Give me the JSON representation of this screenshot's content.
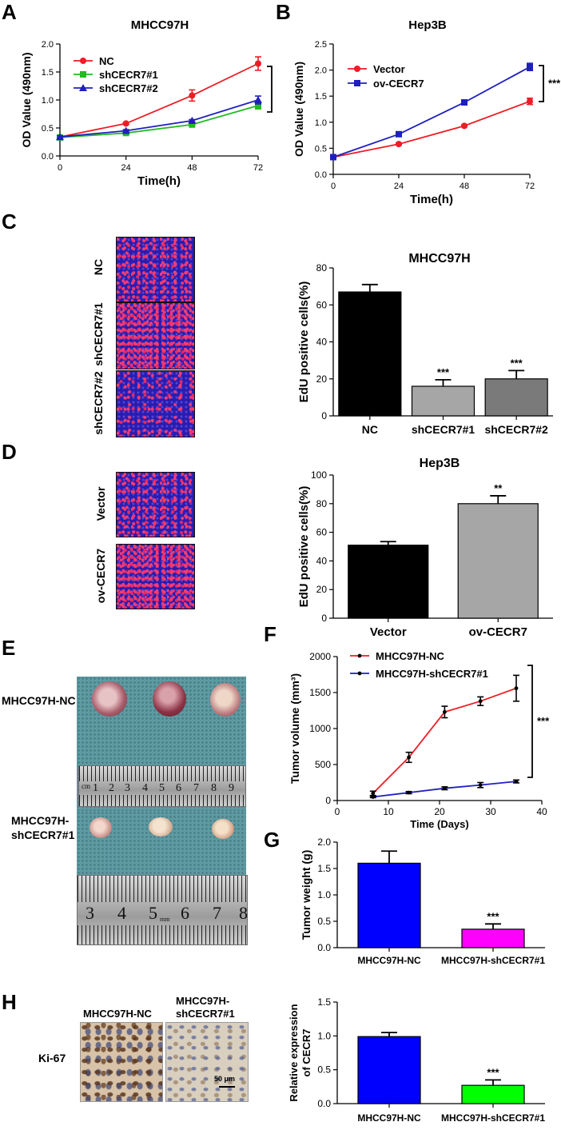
{
  "panels": {
    "A": "A",
    "B": "B",
    "C": "C",
    "D": "D",
    "E": "E",
    "F": "F",
    "G": "G",
    "H": "H"
  },
  "panel_C": {
    "labels": [
      "NC",
      "shCECR7#1",
      "shCECR7#2"
    ]
  },
  "panel_D": {
    "labels": [
      "Vector",
      "ov-CECR7"
    ]
  },
  "panel_E": {
    "row1": "MHCC97H-NC",
    "row2_line1": "MHCC97H-",
    "row2_line2": "shCECR7#1",
    "ruler1_numbers": [
      "cm",
      "1",
      "2",
      "3",
      "4",
      "5",
      "6",
      "7",
      "8",
      "9"
    ],
    "ruler2_numbers": [
      "3",
      "4",
      "5",
      "6",
      "7",
      "8"
    ],
    "ruler2_unit": "mm"
  },
  "panel_H": {
    "col1": "MHCC97H-NC",
    "col2_line1": "MHCC97H-",
    "col2_line2": "shCECR7#1",
    "row": "Ki-67",
    "scale_bar": "50 μm"
  },
  "colors": {
    "red": "#ee1c25",
    "green": "#22bb22",
    "blue": "#1f1fbf",
    "black": "#000000",
    "gray_light": "#a6a6a6",
    "gray_dark": "#7a7a7a",
    "bar_blue": "#0000ff",
    "magenta": "#ff00ff",
    "lime": "#00ff00"
  },
  "chart_data": [
    {
      "id": "A",
      "type": "line",
      "title": "MHCC97H",
      "xlabel": "Time(h)",
      "ylabel": "OD Value (490nm)",
      "x": [
        0,
        24,
        48,
        72
      ],
      "xlim": [
        0,
        72
      ],
      "ylim": [
        0,
        2.0
      ],
      "xticks": [
        "0",
        "24",
        "48",
        "72"
      ],
      "yticks": [
        "0.0",
        "0.5",
        "1.0",
        "1.5",
        "2.0"
      ],
      "legend": "top-left",
      "series": [
        {
          "name": "NC",
          "marker": "circle",
          "color": "#ee1c25",
          "values": [
            0.34,
            0.58,
            1.08,
            1.65
          ],
          "errors": [
            0.02,
            0.02,
            0.1,
            0.12
          ]
        },
        {
          "name": "shCECR7#1",
          "marker": "square",
          "color": "#22bb22",
          "values": [
            0.33,
            0.41,
            0.56,
            0.9
          ],
          "errors": [
            0.02,
            0.02,
            0.03,
            0.06
          ]
        },
        {
          "name": "shCECR7#2",
          "marker": "triangle",
          "color": "#1f1fbf",
          "values": [
            0.34,
            0.45,
            0.63,
            1.0
          ],
          "errors": [
            0.02,
            0.02,
            0.02,
            0.07
          ]
        }
      ],
      "significance": "**"
    },
    {
      "id": "B",
      "type": "line",
      "title": "Hep3B",
      "xlabel": "Time(h)",
      "ylabel": "OD Value (490nm)",
      "x": [
        0,
        24,
        48,
        72
      ],
      "xlim": [
        0,
        72
      ],
      "ylim": [
        0,
        2.5
      ],
      "xticks": [
        "0",
        "24",
        "48",
        "72"
      ],
      "yticks": [
        "0.0",
        "0.5",
        "1.0",
        "1.5",
        "2.0",
        "2.5"
      ],
      "legend": "top-left",
      "series": [
        {
          "name": "Vector",
          "marker": "circle",
          "color": "#ee1c25",
          "values": [
            0.33,
            0.58,
            0.93,
            1.4
          ],
          "errors": [
            0.02,
            0.02,
            0.02,
            0.06
          ]
        },
        {
          "name": "ov-CECR7",
          "marker": "square",
          "color": "#1f1fbf",
          "values": [
            0.33,
            0.77,
            1.38,
            2.06
          ],
          "errors": [
            0.02,
            0.02,
            0.02,
            0.07
          ]
        }
      ],
      "significance": "***"
    },
    {
      "id": "C",
      "type": "bar",
      "title": "MHCC97H",
      "xlabel": "",
      "ylabel": "EdU positive cells(%)",
      "categories": [
        "NC",
        "shCECR7#1",
        "shCECR7#2"
      ],
      "values": [
        67,
        16,
        20
      ],
      "errors": [
        4,
        3.5,
        4.5
      ],
      "colors": [
        "#000000",
        "#a6a6a6",
        "#7a7a7a"
      ],
      "significance": [
        "",
        "***",
        "***"
      ],
      "ylim": [
        0,
        80
      ],
      "yticks": [
        "0",
        "20",
        "40",
        "60",
        "80"
      ]
    },
    {
      "id": "D",
      "type": "bar",
      "title": "Hep3B",
      "xlabel": "",
      "ylabel": "EdU positive cells(%)",
      "categories": [
        "Vector",
        "ov-CECR7"
      ],
      "values": [
        51,
        80
      ],
      "errors": [
        2.5,
        5.5
      ],
      "colors": [
        "#000000",
        "#a6a6a6"
      ],
      "significance": [
        "",
        "**"
      ],
      "ylim": [
        0,
        100
      ],
      "yticks": [
        "0",
        "20",
        "40",
        "60",
        "80",
        "100"
      ]
    },
    {
      "id": "F",
      "type": "line",
      "title": "",
      "xlabel": "Time (Days)",
      "ylabel": "Tumor volume (mm³)",
      "x": [
        7,
        14,
        21,
        28,
        35
      ],
      "xlim": [
        0,
        40
      ],
      "ylim": [
        0,
        2000
      ],
      "xticks": [
        "0",
        "10",
        "20",
        "30",
        "40"
      ],
      "yticks": [
        "0",
        "500",
        "1000",
        "1500",
        "2000"
      ],
      "legend": "top-left",
      "series": [
        {
          "name": "MHCC97H-NC",
          "marker": "dot",
          "color": "#ee1c25",
          "values": [
            100,
            600,
            1230,
            1380,
            1560
          ],
          "errors": [
            30,
            70,
            80,
            60,
            180
          ]
        },
        {
          "name": "MHCC97H-shCECR7#1",
          "marker": "dot",
          "color": "#1f1fbf",
          "values": [
            50,
            110,
            170,
            215,
            265
          ],
          "errors": [
            10,
            15,
            20,
            35,
            20
          ]
        }
      ],
      "significance": "***"
    },
    {
      "id": "G",
      "type": "bar",
      "title": "",
      "xlabel": "",
      "ylabel": "Tumor weight (g)",
      "categories": [
        "MHCC97H-NC",
        "MHCC97H-shCECR7#1"
      ],
      "values": [
        1.6,
        0.35
      ],
      "errors": [
        0.23,
        0.1
      ],
      "colors": [
        "#0000ff",
        "#ff00ff"
      ],
      "significance": [
        "",
        "***"
      ],
      "ylim": [
        0,
        2.0
      ],
      "yticks": [
        "0.0",
        "0.5",
        "1.0",
        "1.5",
        "2.0"
      ]
    },
    {
      "id": "H",
      "type": "bar",
      "title": "",
      "xlabel": "",
      "ylabel_line1": "Relative expression",
      "ylabel_line2": "of CECR7",
      "categories": [
        "MHCC97H-NC",
        "MHCC97H-shCECR7#1"
      ],
      "values": [
        0.99,
        0.27
      ],
      "errors": [
        0.06,
        0.08
      ],
      "colors": [
        "#0000ff",
        "#00ff00"
      ],
      "significance": [
        "",
        "***"
      ],
      "ylim": [
        0,
        1.5
      ],
      "yticks": [
        "0.0",
        "0.5",
        "1.0",
        "1.5"
      ]
    }
  ]
}
